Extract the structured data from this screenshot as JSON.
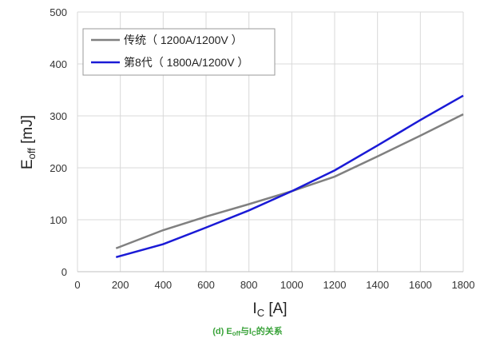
{
  "chart_data": {
    "type": "line",
    "xlabel": "I",
    "xlabel_sub": "C",
    "xlabel_unit": " [A]",
    "ylabel": "E",
    "ylabel_sub": "off",
    "ylabel_unit": " [mJ]",
    "xlim": [
      0,
      1800
    ],
    "ylim": [
      0,
      500
    ],
    "xticks": [
      0,
      200,
      400,
      600,
      800,
      1000,
      1200,
      1400,
      1600,
      1800
    ],
    "yticks": [
      0,
      100,
      200,
      300,
      400,
      500
    ],
    "grid": true,
    "legend": "top-left",
    "series": [
      {
        "name": "传统（ 1200A/1200V ）",
        "color": "#808080",
        "x": [
          180,
          400,
          600,
          800,
          1000,
          1200,
          1400,
          1600,
          1800
        ],
        "y": [
          45,
          80,
          106,
          130,
          155,
          183,
          222,
          262,
          303
        ]
      },
      {
        "name": "第8代（ 1800A/1200V ）",
        "color": "#1a1ad6",
        "x": [
          180,
          400,
          600,
          800,
          1000,
          1200,
          1400,
          1600,
          1800
        ],
        "y": [
          28,
          53,
          85,
          118,
          155,
          195,
          243,
          292,
          339
        ]
      }
    ]
  },
  "caption": {
    "prefix": "(d) E",
    "sub1": "off",
    "mid": "与I",
    "sub2": "C",
    "suffix": "的关系",
    "color": "#3aa33a"
  }
}
